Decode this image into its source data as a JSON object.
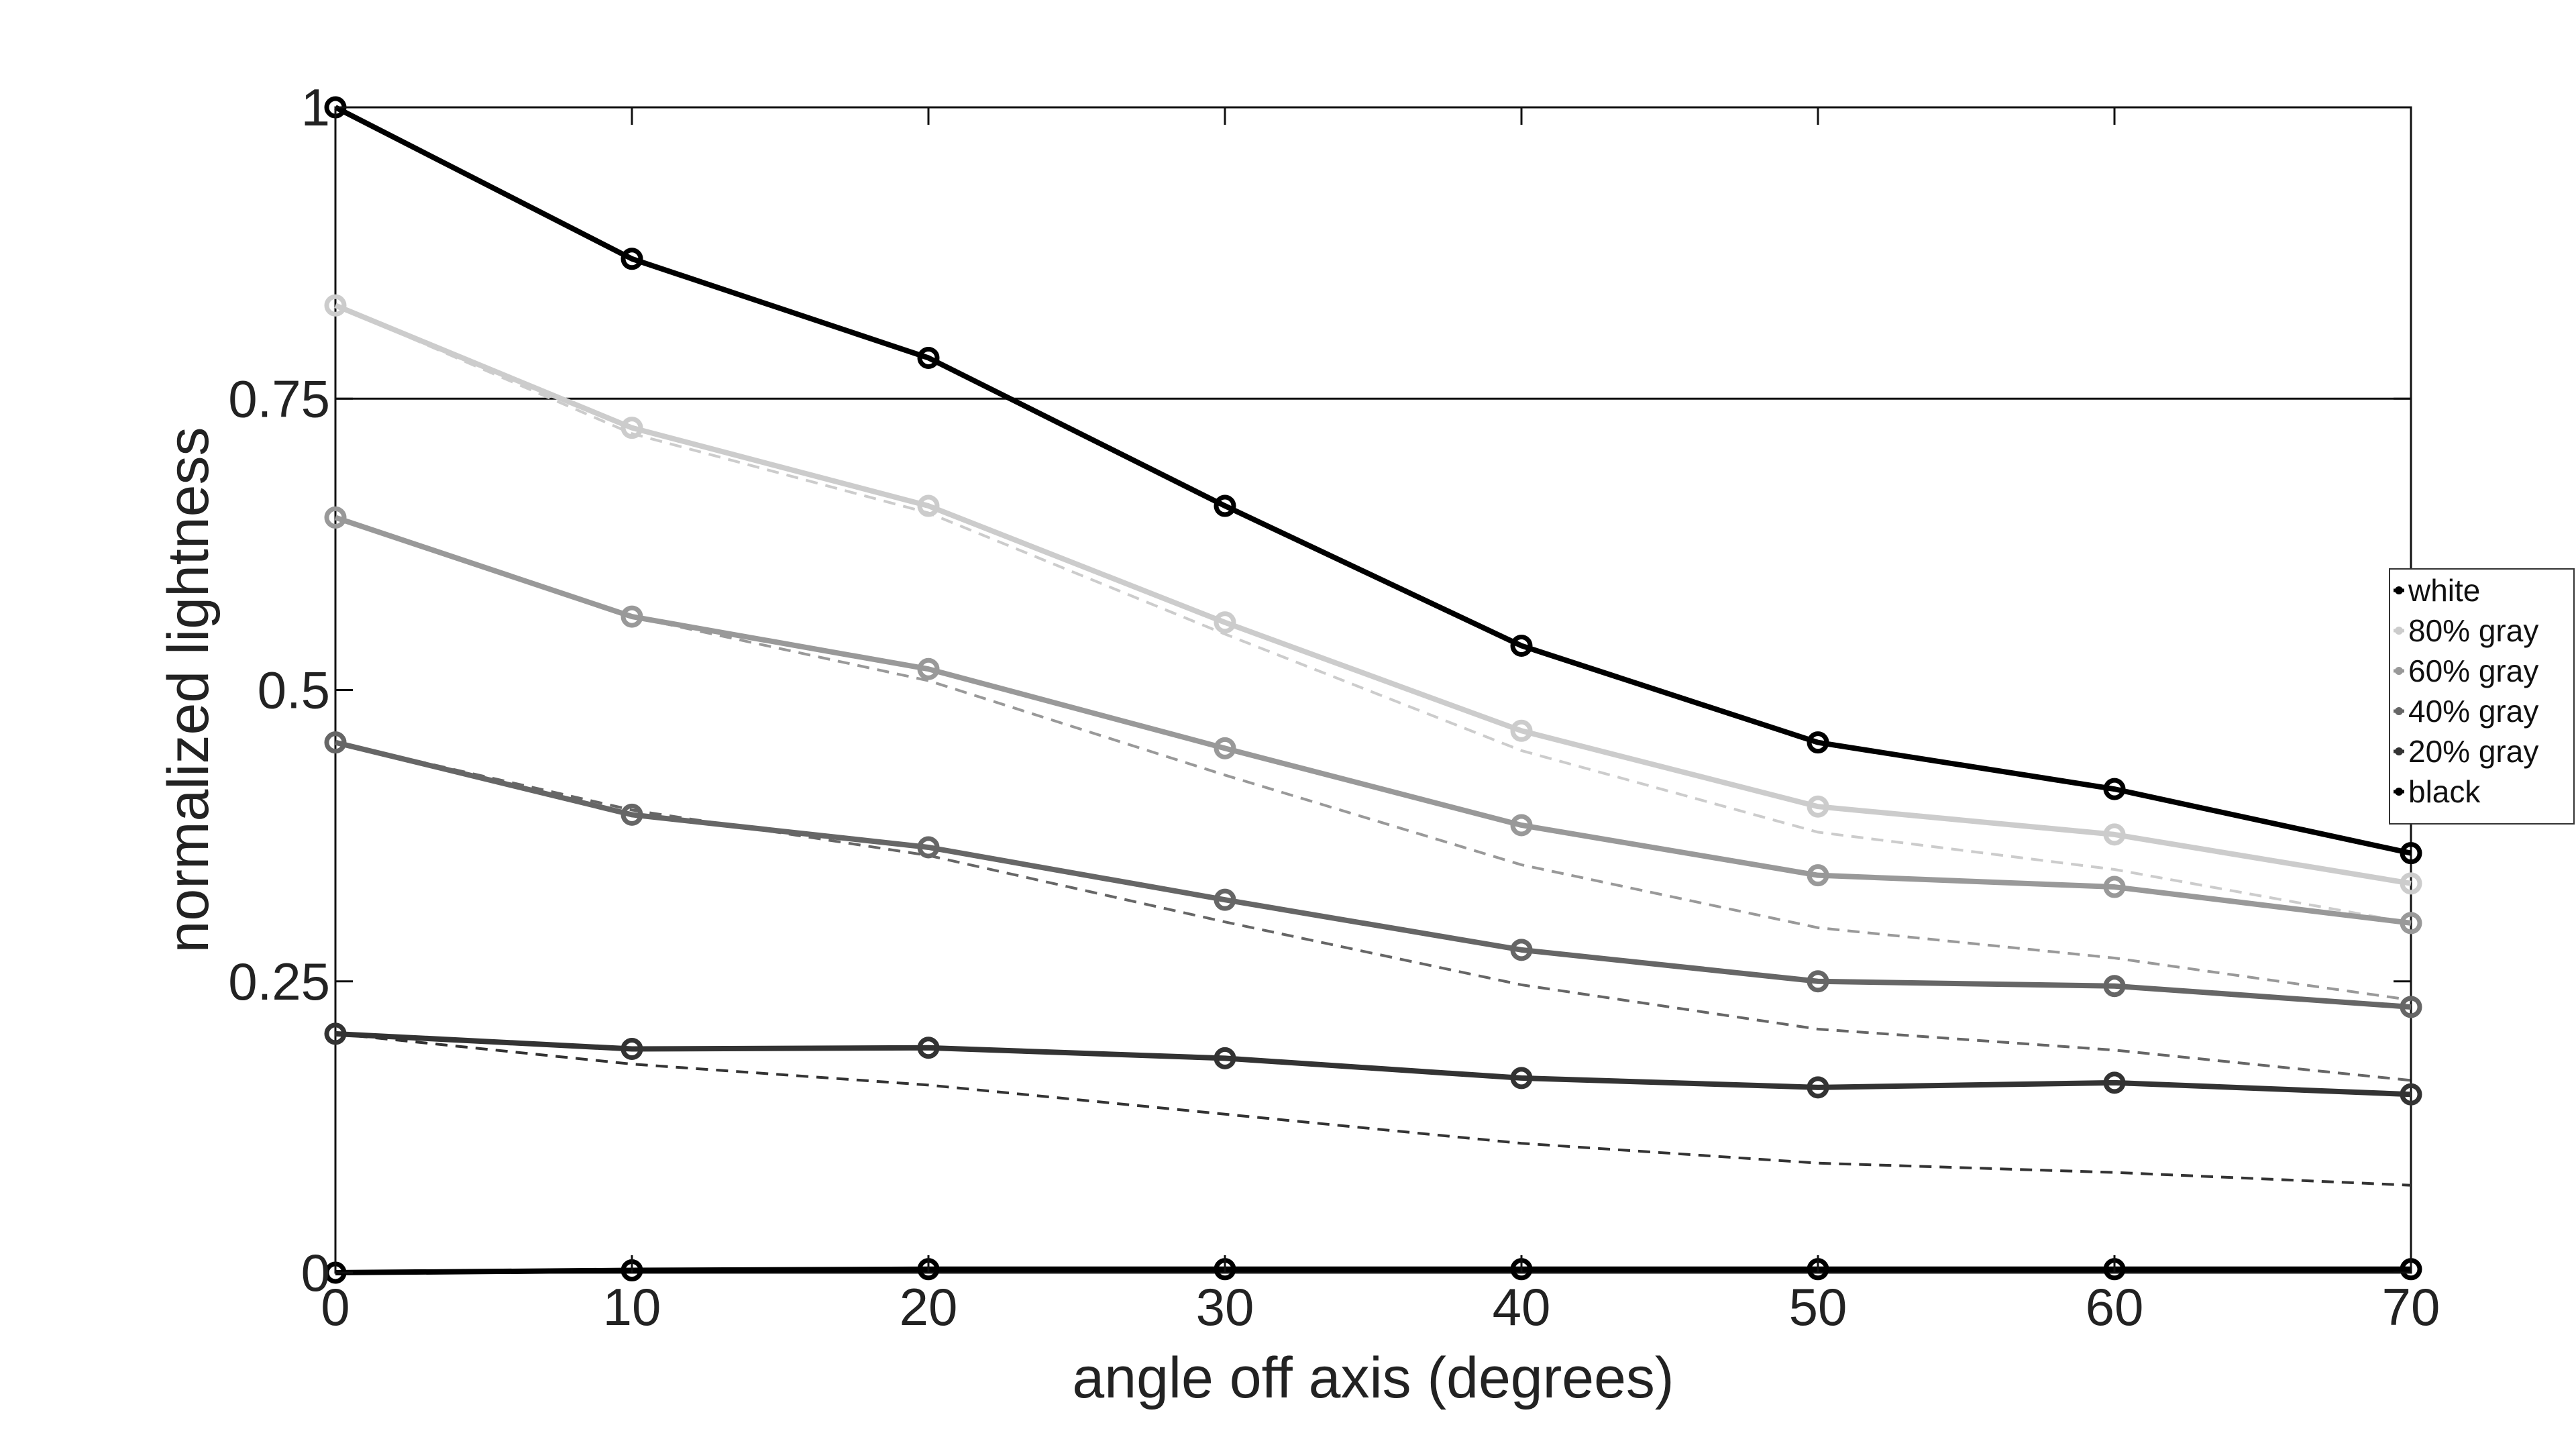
{
  "chart_data": {
    "type": "line",
    "title": "",
    "xlabel": "angle off axis (degrees)",
    "ylabel": "normalized lightness",
    "x": [
      0,
      10,
      20,
      30,
      40,
      50,
      60,
      70
    ],
    "xlim": [
      0,
      70
    ],
    "ylim": [
      0,
      1
    ],
    "x_ticks": [
      "0",
      "10",
      "20",
      "30",
      "40",
      "50",
      "60",
      "70"
    ],
    "y_ticks": [
      "0",
      "0.25",
      "0.5",
      "0.75",
      "1"
    ],
    "y_tick_values": [
      0,
      0.25,
      0.5,
      0.75,
      1
    ],
    "reference_line_y": 0.75,
    "grid": false,
    "legend_placement": "right",
    "series": [
      {
        "name": "white",
        "color": "#000000",
        "values": [
          1.0,
          0.87,
          0.785,
          0.658,
          0.538,
          0.455,
          0.415,
          0.36
        ]
      },
      {
        "name": "80% gray",
        "color": "#cccccc",
        "values": [
          0.83,
          0.725,
          0.658,
          0.558,
          0.465,
          0.4,
          0.376,
          0.334
        ]
      },
      {
        "name": "60% gray",
        "color": "#999999",
        "values": [
          0.648,
          0.563,
          0.518,
          0.45,
          0.384,
          0.341,
          0.331,
          0.3
        ]
      },
      {
        "name": "40% gray",
        "color": "#666666",
        "values": [
          0.455,
          0.393,
          0.365,
          0.32,
          0.277,
          0.25,
          0.246,
          0.228
        ]
      },
      {
        "name": "20% gray",
        "color": "#333333",
        "values": [
          0.205,
          0.192,
          0.193,
          0.184,
          0.167,
          0.159,
          0.163,
          0.153
        ]
      },
      {
        "name": "black",
        "color": "#000000",
        "values": [
          0.0,
          0.002,
          0.003,
          0.003,
          0.003,
          0.003,
          0.003,
          0.003
        ]
      }
    ],
    "reference_series": [
      {
        "color": "#cccccc",
        "values": [
          0.83,
          0.72,
          0.652,
          0.548,
          0.448,
          0.378,
          0.346,
          0.3
        ]
      },
      {
        "color": "#999999",
        "values": [
          0.648,
          0.563,
          0.508,
          0.427,
          0.35,
          0.296,
          0.27,
          0.234
        ]
      },
      {
        "color": "#666666",
        "values": [
          0.455,
          0.397,
          0.358,
          0.301,
          0.247,
          0.209,
          0.191,
          0.165
        ]
      },
      {
        "color": "#333333",
        "values": [
          0.205,
          0.179,
          0.161,
          0.136,
          0.111,
          0.094,
          0.086,
          0.075
        ]
      }
    ]
  }
}
